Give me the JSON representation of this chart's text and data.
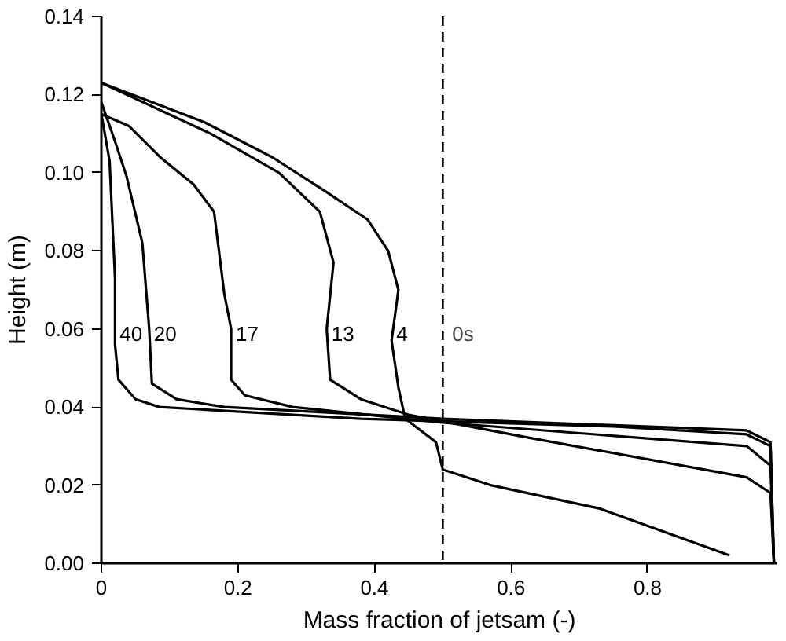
{
  "chart_data": {
    "type": "line",
    "xlabel": "Mass fraction of jetsam (-)",
    "ylabel": "Height (m)",
    "xlim": [
      0,
      0.99
    ],
    "ylim": [
      0,
      0.14
    ],
    "xticks": [
      0,
      0.2,
      0.4,
      0.6,
      0.8
    ],
    "yticks": [
      {
        "value": 0,
        "label": "0.00"
      },
      {
        "value": 0.02,
        "label": "0.02"
      },
      {
        "value": 0.04,
        "label": "0.04"
      },
      {
        "value": 0.06,
        "label": "0.06"
      },
      {
        "value": 0.08,
        "label": "0.08"
      },
      {
        "value": 0.1,
        "label": "0.10"
      },
      {
        "value": 0.12,
        "label": "0.12"
      },
      {
        "value": 0.14,
        "label": "0.14"
      }
    ],
    "grid": false,
    "marker": "none",
    "line_style": "solid",
    "ref_lines": [
      {
        "axis": "x",
        "value": 0.5,
        "label": "0s",
        "line_style": "dashed",
        "color": "#000000"
      }
    ],
    "series": [
      {
        "name": "40",
        "color": "#000000",
        "x": [
          0,
          0.005,
          0.012,
          0.02,
          0.02,
          0.025,
          0.05,
          0.085,
          0.38,
          0.75,
          0.945,
          0.98,
          0.985
        ],
        "values": [
          0.115,
          0.11,
          0.103,
          0.073,
          0.056,
          0.047,
          0.042,
          0.04,
          0.037,
          0.035,
          0.033,
          0.03,
          0
        ]
      },
      {
        "name": "20",
        "color": "#000000",
        "x": [
          0,
          0.02,
          0.037,
          0.06,
          0.07,
          0.074,
          0.11,
          0.18,
          0.5,
          0.945,
          0.98,
          0.985
        ],
        "values": [
          0.118,
          0.108,
          0.099,
          0.082,
          0.06,
          0.046,
          0.042,
          0.04,
          0.037,
          0.034,
          0.031,
          0
        ]
      },
      {
        "name": "17",
        "color": "#000000",
        "x": [
          0,
          0.04,
          0.086,
          0.135,
          0.165,
          0.18,
          0.19,
          0.19,
          0.21,
          0.28,
          0.5,
          0.945,
          0.98,
          0.985
        ],
        "values": [
          0.115,
          0.112,
          0.104,
          0.097,
          0.09,
          0.069,
          0.06,
          0.047,
          0.043,
          0.04,
          0.036,
          0.03,
          0.025,
          0
        ]
      },
      {
        "name": "13",
        "color": "#000000",
        "x": [
          0,
          0.16,
          0.26,
          0.32,
          0.34,
          0.33,
          0.335,
          0.38,
          0.45,
          0.63,
          0.945,
          0.98,
          0.985
        ],
        "values": [
          0.123,
          0.11,
          0.1,
          0.09,
          0.077,
          0.06,
          0.047,
          0.042,
          0.038,
          0.032,
          0.022,
          0.018,
          0
        ]
      },
      {
        "name": "4",
        "color": "#000000",
        "x": [
          0,
          0.15,
          0.25,
          0.33,
          0.39,
          0.42,
          0.435,
          0.425,
          0.435,
          0.445,
          0.49,
          0.5,
          0.57,
          0.73,
          0.92
        ],
        "values": [
          0.123,
          0.113,
          0.104,
          0.095,
          0.088,
          0.08,
          0.07,
          0.057,
          0.045,
          0.037,
          0.031,
          0.024,
          0.02,
          0.014,
          0.002
        ]
      }
    ]
  }
}
